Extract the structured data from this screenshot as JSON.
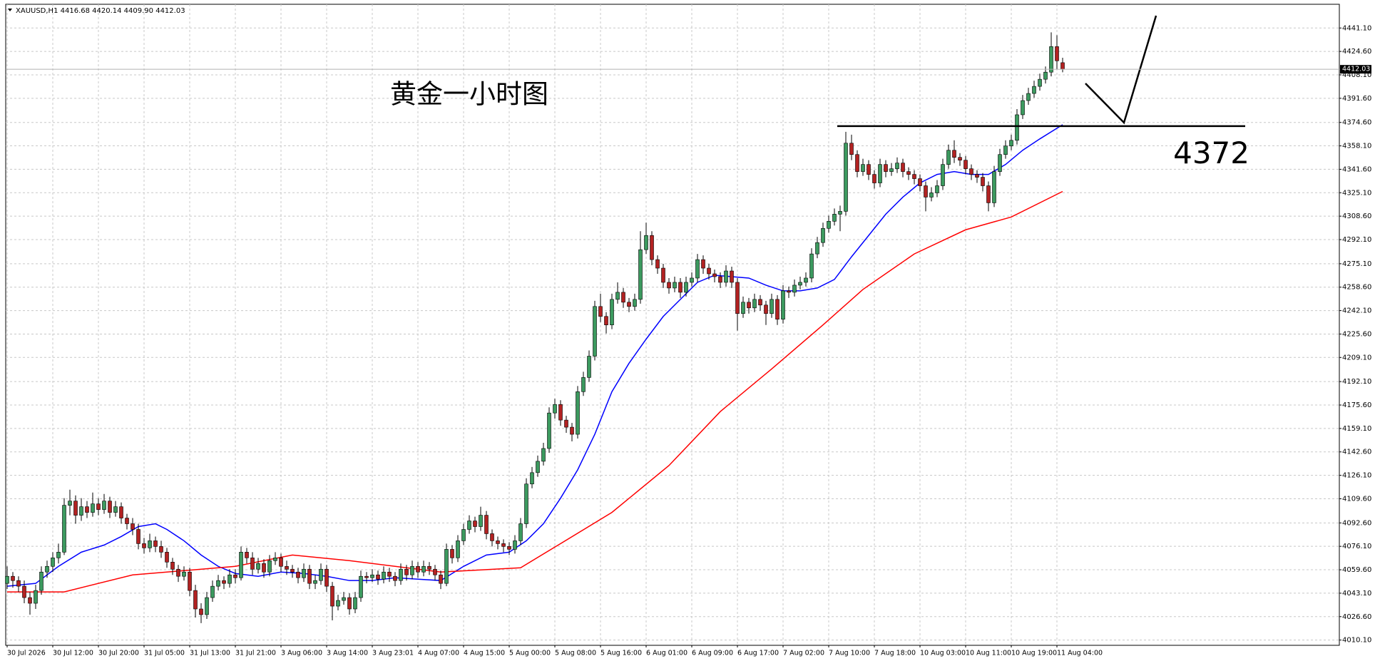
{
  "chart_data": {
    "type": "candlestick",
    "header": "XAUUSD,H1  4416.68 4420.14 4409.90 4412.03",
    "annotation_title": "黄金一小时图",
    "level": 4372,
    "bull_color": "#3c9a5f",
    "bear_color": "#b22222",
    "grid": true,
    "ylim": [
      4006.4,
      4457.8
    ],
    "yticks": [
      {
        "value": 4441.1,
        "label": "4441.10"
      },
      {
        "value": 4424.6,
        "label": "4424.60"
      },
      {
        "value": 4408.1,
        "label": "4408.10"
      },
      {
        "value": 4391.6,
        "label": "4391.60"
      },
      {
        "value": 4374.6,
        "label": "4374.60"
      },
      {
        "value": 4358.1,
        "label": "4358.10"
      },
      {
        "value": 4341.6,
        "label": "4341.60"
      },
      {
        "value": 4325.1,
        "label": "4325.10"
      },
      {
        "value": 4308.6,
        "label": "4308.60"
      },
      {
        "value": 4292.1,
        "label": "4292.10"
      },
      {
        "value": 4275.1,
        "label": "4275.10"
      },
      {
        "value": 4258.6,
        "label": "4258.60"
      },
      {
        "value": 4242.1,
        "label": "4242.10"
      },
      {
        "value": 4225.6,
        "label": "4225.60"
      },
      {
        "value": 4209.1,
        "label": "4209.10"
      },
      {
        "value": 4192.1,
        "label": "4192.10"
      },
      {
        "value": 4175.6,
        "label": "4175.60"
      },
      {
        "value": 4159.1,
        "label": "4159.10"
      },
      {
        "value": 4142.6,
        "label": "4142.60"
      },
      {
        "value": 4126.1,
        "label": "4126.10"
      },
      {
        "value": 4109.6,
        "label": "4109.60"
      },
      {
        "value": 4092.6,
        "label": "4092.60"
      },
      {
        "value": 4076.1,
        "label": "4076.10"
      },
      {
        "value": 4059.6,
        "label": "4059.60"
      },
      {
        "value": 4043.1,
        "label": "4043.10"
      },
      {
        "value": 4026.6,
        "label": "4026.60"
      },
      {
        "value": 4010.1,
        "label": "4010.10"
      }
    ],
    "categories": [
      "30 Jul 2026",
      "30 Jul 12:00",
      "30 Jul 20:00",
      "31 Jul 05:00",
      "31 Jul 13:00",
      "31 Jul 21:00",
      "3 Aug 06:00",
      "3 Aug 14:00",
      "3 Aug 23:01",
      "4 Aug 07:00",
      "4 Aug 15:00",
      "5 Aug 00:00",
      "5 Aug 08:00",
      "5 Aug 16:00",
      "6 Aug 01:00",
      "6 Aug 09:00",
      "6 Aug 17:00",
      "7 Aug 02:00",
      "7 Aug 10:00",
      "7 Aug 18:00",
      "10 Aug 03:00",
      "10 Aug 11:00",
      "10 Aug 19:00",
      "11 Aug 04:00"
    ],
    "candles": [
      [
        4050,
        4062,
        4046,
        4055
      ],
      [
        4055,
        4058,
        4047,
        4052
      ],
      [
        4052,
        4055,
        4044,
        4048
      ],
      [
        4048,
        4052,
        4036,
        4040
      ],
      [
        4040,
        4044,
        4028,
        4036
      ],
      [
        4036,
        4049,
        4032,
        4045
      ],
      [
        4045,
        4062,
        4042,
        4058
      ],
      [
        4058,
        4066,
        4054,
        4062
      ],
      [
        4062,
        4072,
        4058,
        4068
      ],
      [
        4068,
        4078,
        4064,
        4072
      ],
      [
        4072,
        4110,
        4070,
        4105
      ],
      [
        4105,
        4116,
        4098,
        4108
      ],
      [
        4108,
        4112,
        4092,
        4098
      ],
      [
        4098,
        4110,
        4094,
        4104
      ],
      [
        4104,
        4108,
        4096,
        4100
      ],
      [
        4100,
        4114,
        4097,
        4106
      ],
      [
        4106,
        4110,
        4098,
        4102
      ],
      [
        4102,
        4113,
        4099,
        4108
      ],
      [
        4108,
        4111,
        4096,
        4100
      ],
      [
        4100,
        4108,
        4097,
        4104
      ],
      [
        4104,
        4107,
        4092,
        4096
      ],
      [
        4096,
        4099,
        4088,
        4092
      ],
      [
        4092,
        4096,
        4084,
        4088
      ],
      [
        4088,
        4092,
        4074,
        4078
      ],
      [
        4078,
        4082,
        4071,
        4075
      ],
      [
        4075,
        4085,
        4072,
        4080
      ],
      [
        4080,
        4083,
        4072,
        4076
      ],
      [
        4076,
        4080,
        4068,
        4072
      ],
      [
        4072,
        4075,
        4061,
        4065
      ],
      [
        4065,
        4068,
        4056,
        4060
      ],
      [
        4060,
        4063,
        4051,
        4055
      ],
      [
        4055,
        4062,
        4052,
        4058
      ],
      [
        4058,
        4061,
        4041,
        4045
      ],
      [
        4045,
        4049,
        4026,
        4032
      ],
      [
        4032,
        4036,
        4022,
        4028
      ],
      [
        4028,
        4044,
        4025,
        4040
      ],
      [
        4040,
        4052,
        4037,
        4048
      ],
      [
        4048,
        4056,
        4045,
        4052
      ],
      [
        4052,
        4055,
        4046,
        4050
      ],
      [
        4050,
        4060,
        4047,
        4056
      ],
      [
        4056,
        4060,
        4050,
        4054
      ],
      [
        4054,
        4076,
        4052,
        4072
      ],
      [
        4072,
        4075,
        4064,
        4068
      ],
      [
        4068,
        4072,
        4056,
        4060
      ],
      [
        4060,
        4068,
        4057,
        4064
      ],
      [
        4064,
        4067,
        4054,
        4058
      ],
      [
        4058,
        4070,
        4055,
        4066
      ],
      [
        4066,
        4072,
        4063,
        4068
      ],
      [
        4068,
        4071,
        4058,
        4062
      ],
      [
        4062,
        4066,
        4056,
        4060
      ],
      [
        4060,
        4063,
        4054,
        4058
      ],
      [
        4058,
        4061,
        4050,
        4054
      ],
      [
        4054,
        4064,
        4051,
        4060
      ],
      [
        4060,
        4063,
        4046,
        4050
      ],
      [
        4050,
        4056,
        4046,
        4052
      ],
      [
        4052,
        4064,
        4049,
        4060
      ],
      [
        4060,
        4063,
        4044,
        4048
      ],
      [
        4048,
        4051,
        4024,
        4034
      ],
      [
        4034,
        4042,
        4031,
        4038
      ],
      [
        4038,
        4044,
        4035,
        4040
      ],
      [
        4040,
        4043,
        4028,
        4032
      ],
      [
        4032,
        4044,
        4029,
        4040
      ],
      [
        4040,
        4059,
        4037,
        4055
      ],
      [
        4055,
        4058,
        4050,
        4054
      ],
      [
        4054,
        4060,
        4051,
        4056
      ],
      [
        4056,
        4059,
        4049,
        4053
      ],
      [
        4053,
        4062,
        4050,
        4058
      ],
      [
        4058,
        4061,
        4051,
        4055
      ],
      [
        4055,
        4058,
        4048,
        4052
      ],
      [
        4052,
        4064,
        4049,
        4060
      ],
      [
        4060,
        4063,
        4052,
        4056
      ],
      [
        4056,
        4066,
        4053,
        4062
      ],
      [
        4062,
        4065,
        4054,
        4058
      ],
      [
        4058,
        4066,
        4055,
        4062
      ],
      [
        4062,
        4065,
        4056,
        4060
      ],
      [
        4060,
        4063,
        4052,
        4056
      ],
      [
        4056,
        4059,
        4046,
        4050
      ],
      [
        4050,
        4078,
        4048,
        4074
      ],
      [
        4074,
        4077,
        4064,
        4068
      ],
      [
        4068,
        4084,
        4065,
        4080
      ],
      [
        4080,
        4092,
        4077,
        4088
      ],
      [
        4088,
        4098,
        4085,
        4094
      ],
      [
        4094,
        4097,
        4086,
        4090
      ],
      [
        4090,
        4104,
        4087,
        4098
      ],
      [
        4098,
        4101,
        4081,
        4085
      ],
      [
        4085,
        4088,
        4076,
        4080
      ],
      [
        4080,
        4083,
        4074,
        4078
      ],
      [
        4078,
        4081,
        4072,
        4076
      ],
      [
        4076,
        4079,
        4070,
        4074
      ],
      [
        4074,
        4084,
        4071,
        4080
      ],
      [
        4080,
        4096,
        4077,
        4092
      ],
      [
        4092,
        4124,
        4089,
        4120
      ],
      [
        4120,
        4132,
        4117,
        4128
      ],
      [
        4128,
        4140,
        4125,
        4136
      ],
      [
        4136,
        4149,
        4133,
        4145
      ],
      [
        4145,
        4174,
        4142,
        4170
      ],
      [
        4170,
        4180,
        4166,
        4176
      ],
      [
        4176,
        4179,
        4161,
        4165
      ],
      [
        4165,
        4168,
        4156,
        4160
      ],
      [
        4160,
        4163,
        4150,
        4155
      ],
      [
        4155,
        4189,
        4152,
        4185
      ],
      [
        4185,
        4199,
        4182,
        4195
      ],
      [
        4195,
        4214,
        4192,
        4210
      ],
      [
        4210,
        4249,
        4207,
        4245
      ],
      [
        4245,
        4254,
        4234,
        4238
      ],
      [
        4238,
        4241,
        4226,
        4232
      ],
      [
        4232,
        4254,
        4229,
        4250
      ],
      [
        4250,
        4262,
        4247,
        4255
      ],
      [
        4255,
        4258,
        4244,
        4248
      ],
      [
        4248,
        4251,
        4241,
        4245
      ],
      [
        4245,
        4254,
        4242,
        4250
      ],
      [
        4250,
        4298,
        4247,
        4285
      ],
      [
        4285,
        4304,
        4282,
        4295
      ],
      [
        4295,
        4298,
        4274,
        4278
      ],
      [
        4278,
        4281,
        4268,
        4272
      ],
      [
        4272,
        4275,
        4258,
        4262
      ],
      [
        4262,
        4265,
        4254,
        4258
      ],
      [
        4258,
        4266,
        4255,
        4262
      ],
      [
        4262,
        4265,
        4251,
        4255
      ],
      [
        4255,
        4266,
        4252,
        4262
      ],
      [
        4262,
        4269,
        4259,
        4265
      ],
      [
        4265,
        4282,
        4262,
        4278
      ],
      [
        4278,
        4281,
        4268,
        4272
      ],
      [
        4272,
        4275,
        4264,
        4268
      ],
      [
        4268,
        4271,
        4262,
        4266
      ],
      [
        4266,
        4269,
        4258,
        4262
      ],
      [
        4262,
        4274,
        4259,
        4270
      ],
      [
        4270,
        4273,
        4258,
        4262
      ],
      [
        4262,
        4265,
        4228,
        4240
      ],
      [
        4240,
        4252,
        4237,
        4248
      ],
      [
        4248,
        4251,
        4240,
        4244
      ],
      [
        4244,
        4254,
        4241,
        4250
      ],
      [
        4250,
        4253,
        4242,
        4246
      ],
      [
        4246,
        4249,
        4232,
        4240
      ],
      [
        4240,
        4254,
        4237,
        4250
      ],
      [
        4250,
        4253,
        4232,
        4236
      ],
      [
        4236,
        4260,
        4233,
        4256
      ],
      [
        4256,
        4259,
        4251,
        4255
      ],
      [
        4255,
        4264,
        4252,
        4260
      ],
      [
        4260,
        4266,
        4257,
        4262
      ],
      [
        4262,
        4269,
        4259,
        4265
      ],
      [
        4265,
        4286,
        4262,
        4282
      ],
      [
        4282,
        4294,
        4279,
        4290
      ],
      [
        4290,
        4304,
        4287,
        4300
      ],
      [
        4300,
        4309,
        4297,
        4305
      ],
      [
        4305,
        4314,
        4302,
        4310
      ],
      [
        4310,
        4316,
        4298,
        4312
      ],
      [
        4312,
        4368,
        4309,
        4360
      ],
      [
        4360,
        4366,
        4348,
        4352
      ],
      [
        4352,
        4355,
        4336,
        4340
      ],
      [
        4340,
        4349,
        4337,
        4345
      ],
      [
        4345,
        4348,
        4334,
        4338
      ],
      [
        4338,
        4341,
        4328,
        4332
      ],
      [
        4332,
        4349,
        4329,
        4345
      ],
      [
        4345,
        4348,
        4336,
        4340
      ],
      [
        4340,
        4346,
        4337,
        4342
      ],
      [
        4342,
        4350,
        4339,
        4346
      ],
      [
        4346,
        4349,
        4336,
        4340
      ],
      [
        4340,
        4343,
        4334,
        4338
      ],
      [
        4338,
        4341,
        4331,
        4335
      ],
      [
        4335,
        4338,
        4326,
        4330
      ],
      [
        4330,
        4333,
        4312,
        4322
      ],
      [
        4322,
        4329,
        4319,
        4325
      ],
      [
        4325,
        4334,
        4322,
        4330
      ],
      [
        4330,
        4349,
        4327,
        4345
      ],
      [
        4345,
        4359,
        4342,
        4355
      ],
      [
        4355,
        4362,
        4346,
        4350
      ],
      [
        4350,
        4353,
        4344,
        4348
      ],
      [
        4348,
        4351,
        4338,
        4342
      ],
      [
        4342,
        4345,
        4334,
        4338
      ],
      [
        4338,
        4341,
        4332,
        4336
      ],
      [
        4336,
        4339,
        4326,
        4330
      ],
      [
        4330,
        4333,
        4312,
        4318
      ],
      [
        4318,
        4344,
        4315,
        4340
      ],
      [
        4340,
        4356,
        4337,
        4352
      ],
      [
        4352,
        4362,
        4349,
        4358
      ],
      [
        4358,
        4366,
        4355,
        4362
      ],
      [
        4362,
        4384,
        4359,
        4380
      ],
      [
        4380,
        4394,
        4377,
        4390
      ],
      [
        4390,
        4399,
        4387,
        4395
      ],
      [
        4395,
        4404,
        4392,
        4400
      ],
      [
        4400,
        4409,
        4397,
        4405
      ],
      [
        4405,
        4414,
        4402,
        4410
      ],
      [
        4410,
        4438,
        4407,
        4428
      ],
      [
        4428,
        4436,
        4412,
        4418
      ],
      [
        4416.68,
        4420.14,
        4409.9,
        4412.03
      ]
    ],
    "series": [
      {
        "name": "MA fast",
        "color": "#0000ff",
        "x": [
          0,
          5,
          9,
          13,
          17,
          20,
          23,
          26,
          28,
          31,
          34,
          37,
          40,
          44,
          48,
          52,
          56,
          60,
          64,
          68,
          72,
          76,
          80,
          84,
          88,
          91,
          94,
          97,
          100,
          103,
          106,
          109,
          112,
          115,
          118,
          121,
          124,
          127,
          130,
          133,
          136,
          139,
          142,
          145,
          148,
          151,
          154,
          157,
          160,
          163,
          166,
          169,
          172,
          175,
          178,
          181,
          185
        ],
        "values": [
          4048,
          4050,
          4062,
          4072,
          4077,
          4083,
          4090,
          4092,
          4088,
          4080,
          4070,
          4062,
          4057,
          4055,
          4058,
          4057,
          4055,
          4052,
          4052,
          4054,
          4053,
          4052,
          4062,
          4070,
          4072,
          4080,
          4092,
          4110,
          4130,
          4155,
          4185,
          4205,
          4222,
          4238,
          4250,
          4262,
          4267,
          4266,
          4265,
          4260,
          4256,
          4256,
          4258,
          4264,
          4280,
          4295,
          4310,
          4322,
          4332,
          4338,
          4340,
          4338,
          4338,
          4345,
          4355,
          4363,
          4373
        ]
      },
      {
        "name": "MA slow",
        "color": "#ff0000",
        "x": [
          0,
          10,
          22,
          40,
          50,
          60,
          76,
          90,
          97,
          106,
          116,
          125,
          134,
          143,
          150,
          159,
          168,
          176,
          185
        ],
        "values": [
          4044,
          4044,
          4056,
          4062,
          4070,
          4066,
          4058,
          4061,
          4078,
          4100,
          4133,
          4171,
          4201,
          4232,
          4257,
          4282,
          4299,
          4308,
          4326
        ]
      }
    ]
  }
}
